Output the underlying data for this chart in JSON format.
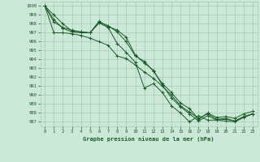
{
  "title": "Graphe pression niveau de la mer (hPa)",
  "bg_color": "#cce8d8",
  "grid_color": "#a8c8b8",
  "line_color": "#1a5c28",
  "xlim": [
    -0.5,
    23.5
  ],
  "ylim": [
    986.5,
    1000.5
  ],
  "yticks": [
    987,
    988,
    989,
    990,
    991,
    992,
    993,
    994,
    995,
    996,
    997,
    998,
    999,
    1000
  ],
  "xticks": [
    0,
    1,
    2,
    3,
    4,
    5,
    6,
    7,
    8,
    9,
    10,
    11,
    12,
    13,
    14,
    15,
    16,
    17,
    18,
    19,
    20,
    21,
    22,
    23
  ],
  "series": [
    [
      1000.0,
      999.0,
      998.0,
      997.2,
      997.1,
      997.0,
      998.2,
      997.8,
      997.1,
      996.0,
      994.4,
      993.8,
      992.7,
      991.3,
      990.3,
      989.1,
      988.5,
      987.3,
      988.0,
      987.5,
      987.6,
      987.4,
      987.9,
      988.2
    ],
    [
      1000.0,
      997.0,
      997.0,
      996.9,
      996.7,
      996.4,
      996.0,
      995.6,
      994.4,
      994.1,
      993.4,
      992.6,
      991.9,
      991.0,
      990.0,
      988.8,
      988.1,
      987.4,
      987.9,
      987.3,
      987.4,
      987.1,
      987.6,
      987.9
    ],
    [
      1000.0,
      998.2,
      997.6,
      997.3,
      997.1,
      997.0,
      998.3,
      997.7,
      997.3,
      996.5,
      994.5,
      993.6,
      992.8,
      991.1,
      989.7,
      988.7,
      987.9,
      987.1,
      987.7,
      987.2,
      987.3,
      987.1,
      987.6,
      987.9
    ],
    [
      1000.0,
      998.5,
      997.5,
      997.1,
      997.0,
      997.0,
      998.1,
      997.6,
      995.8,
      994.8,
      993.7,
      990.8,
      991.3,
      990.3,
      988.8,
      988.0,
      987.0,
      987.7,
      987.2,
      987.2,
      987.1,
      987.0,
      987.5,
      987.9
    ]
  ]
}
